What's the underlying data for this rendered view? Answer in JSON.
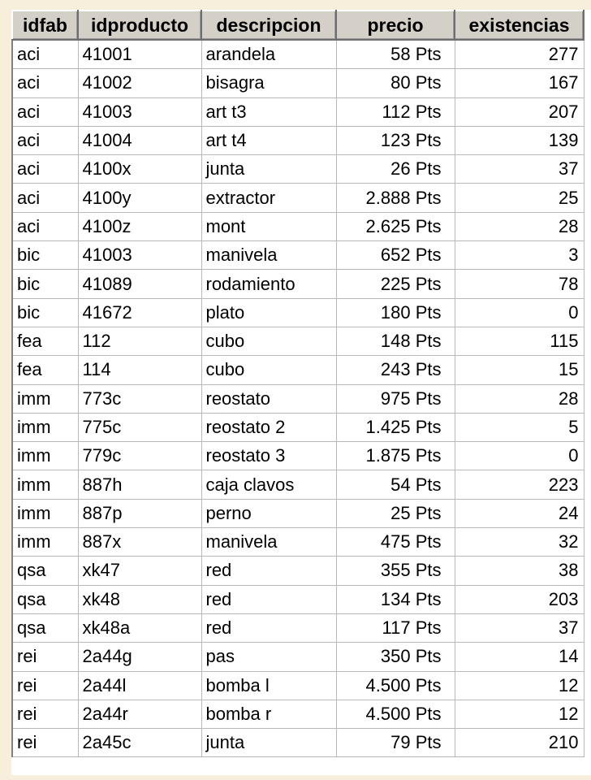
{
  "table": {
    "columns": [
      "idfab",
      "idproducto",
      "descripcion",
      "precio",
      "existencias"
    ],
    "rows": [
      [
        "aci",
        "41001",
        "arandela",
        "58 Pts",
        "277"
      ],
      [
        "aci",
        "41002",
        "bisagra",
        "80 Pts",
        "167"
      ],
      [
        "aci",
        "41003",
        "art t3",
        "112 Pts",
        "207"
      ],
      [
        "aci",
        "41004",
        "art t4",
        "123 Pts",
        "139"
      ],
      [
        "aci",
        "4100x",
        "junta",
        "26 Pts",
        "37"
      ],
      [
        "aci",
        "4100y",
        "extractor",
        "2.888 Pts",
        "25"
      ],
      [
        "aci",
        "4100z",
        "mont",
        "2.625 Pts",
        "28"
      ],
      [
        "bic",
        "41003",
        "manivela",
        "652 Pts",
        "3"
      ],
      [
        "bic",
        "41089",
        "rodamiento",
        "225 Pts",
        "78"
      ],
      [
        "bic",
        "41672",
        "plato",
        "180 Pts",
        "0"
      ],
      [
        "fea",
        "112",
        "cubo",
        "148 Pts",
        "115"
      ],
      [
        "fea",
        "114",
        "cubo",
        "243 Pts",
        "15"
      ],
      [
        "imm",
        "773c",
        "reostato",
        "975 Pts",
        "28"
      ],
      [
        "imm",
        "775c",
        "reostato 2",
        "1.425 Pts",
        "5"
      ],
      [
        "imm",
        "779c",
        "reostato 3",
        "1.875 Pts",
        "0"
      ],
      [
        "imm",
        "887h",
        "caja clavos",
        "54 Pts",
        "223"
      ],
      [
        "imm",
        "887p",
        "perno",
        "25 Pts",
        "24"
      ],
      [
        "imm",
        "887x",
        "manivela",
        "475 Pts",
        "32"
      ],
      [
        "qsa",
        "xk47",
        "red",
        "355 Pts",
        "38"
      ],
      [
        "qsa",
        "xk48",
        "red",
        "134 Pts",
        "203"
      ],
      [
        "qsa",
        "xk48a",
        "red",
        "117 Pts",
        "37"
      ],
      [
        "rei",
        "2a44g",
        "pas",
        "350 Pts",
        "14"
      ],
      [
        "rei",
        "2a44l",
        "bomba l",
        "4.500 Pts",
        "12"
      ],
      [
        "rei",
        "2a44r",
        "bomba r",
        "4.500 Pts",
        "12"
      ],
      [
        "rei",
        "2a45c",
        "junta",
        "79 Pts",
        "210"
      ]
    ]
  }
}
